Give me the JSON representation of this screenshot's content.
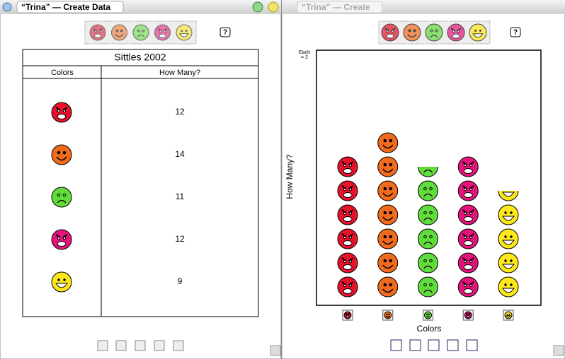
{
  "windows": [
    {
      "title": "“Trina” — Create Data"
    },
    {
      "title": "“Trina” — Create"
    }
  ],
  "table": {
    "title": "Sittles 2002",
    "columns": [
      "Colors",
      "How Many?"
    ],
    "rows": [
      {
        "face_color": "#e8102a",
        "count": 12
      },
      {
        "face_color": "#f26a1c",
        "count": 14
      },
      {
        "face_color": "#62dc3a",
        "count": 11
      },
      {
        "face_color": "#e8137a",
        "count": 12
      },
      {
        "face_color": "#ffe81a",
        "count": 9
      }
    ]
  },
  "pictograph": {
    "key_text": "Each",
    "key": {
      "value": 2,
      "label": "= 2"
    },
    "y_label": "How Many?",
    "x_label": "Colors"
  }
}
